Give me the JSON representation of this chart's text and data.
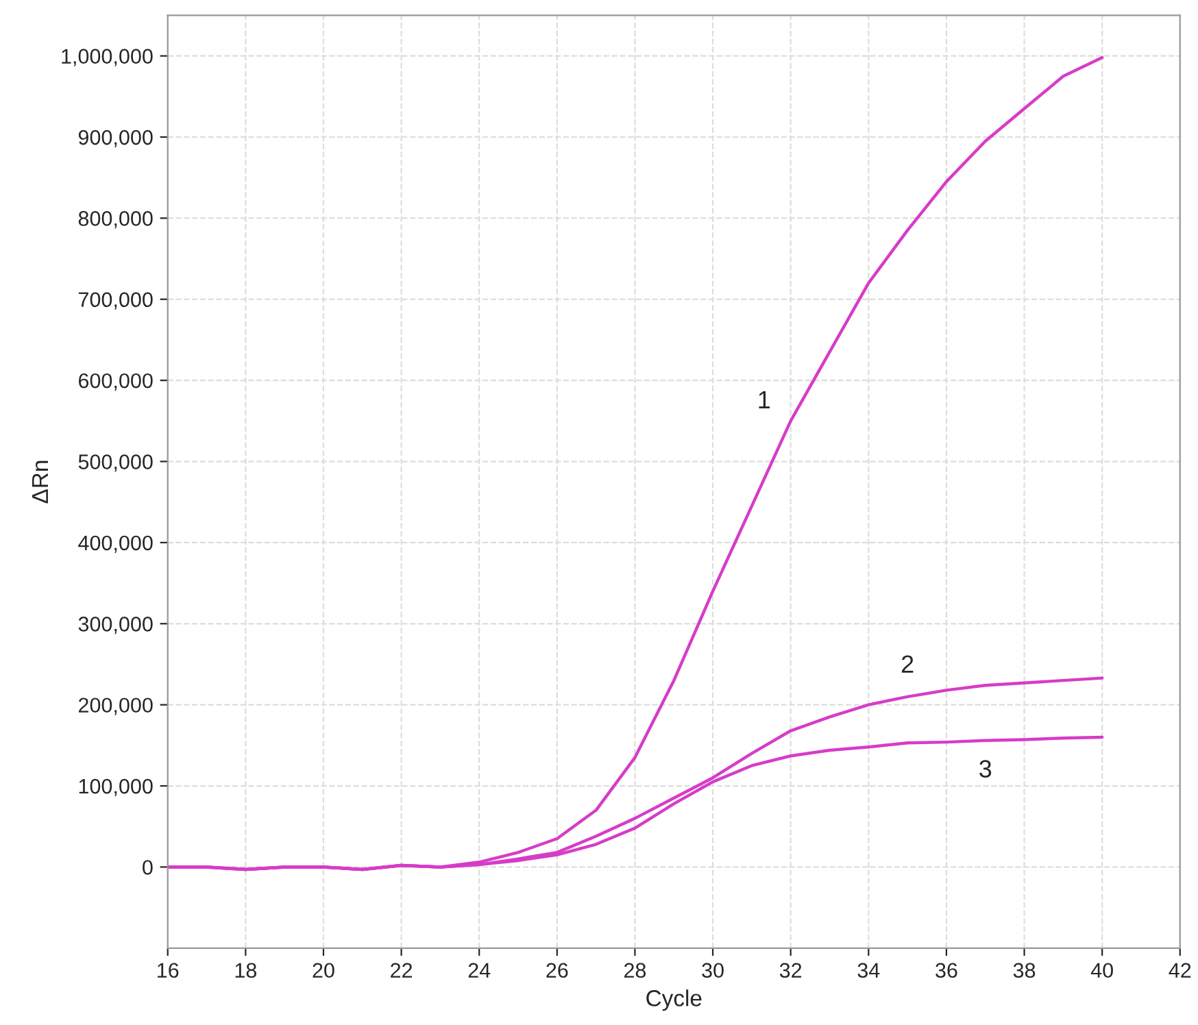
{
  "chart_data": {
    "type": "line",
    "xlabel": "Cycle",
    "ylabel": "ΔRn",
    "x": [
      16,
      17,
      18,
      19,
      20,
      21,
      22,
      23,
      24,
      25,
      26,
      27,
      28,
      29,
      30,
      31,
      32,
      33,
      34,
      35,
      36,
      37,
      38,
      39,
      40
    ],
    "series": [
      {
        "name": "1",
        "color": "#d63cc8",
        "values": [
          0,
          0,
          -3000,
          0,
          0,
          -3000,
          2000,
          0,
          6000,
          18000,
          35000,
          70000,
          135000,
          230000,
          340000,
          445000,
          550000,
          635000,
          720000,
          785000,
          845000,
          895000,
          935000,
          975000,
          998000
        ]
      },
      {
        "name": "2",
        "color": "#d63cc8",
        "values": [
          0,
          0,
          -3000,
          0,
          0,
          -3000,
          2000,
          0,
          3000,
          10000,
          18000,
          38000,
          60000,
          85000,
          110000,
          140000,
          168000,
          185000,
          200000,
          210000,
          218000,
          224000,
          227000,
          230000,
          233000
        ]
      },
      {
        "name": "3",
        "color": "#d63cc8",
        "values": [
          0,
          0,
          -3000,
          0,
          0,
          -3000,
          2000,
          0,
          3000,
          8000,
          15000,
          28000,
          48000,
          78000,
          105000,
          125000,
          137000,
          144000,
          148000,
          153000,
          154000,
          156000,
          157000,
          159000,
          160000
        ]
      }
    ],
    "xlim": [
      16,
      42
    ],
    "xticks": [
      16,
      18,
      20,
      22,
      24,
      26,
      28,
      30,
      32,
      34,
      36,
      38,
      40,
      42
    ],
    "ylim": [
      -100000,
      1050000
    ],
    "yticks": [
      {
        "value": 0,
        "label": "0"
      },
      {
        "value": 100000,
        "label": "100,000"
      },
      {
        "value": 200000,
        "label": "200,000"
      },
      {
        "value": 300000,
        "label": "300,000"
      },
      {
        "value": 400000,
        "label": "400,000"
      },
      {
        "value": 500000,
        "label": "500,000"
      },
      {
        "value": 600000,
        "label": "600,000"
      },
      {
        "value": 700000,
        "label": "700,000"
      },
      {
        "value": 800000,
        "label": "800,000"
      },
      {
        "value": 900000,
        "label": "900,000"
      },
      {
        "value": 1000000,
        "label": "1,000,000"
      }
    ],
    "grid": true,
    "line_style": "solid",
    "marker": "none",
    "legend": false
  }
}
